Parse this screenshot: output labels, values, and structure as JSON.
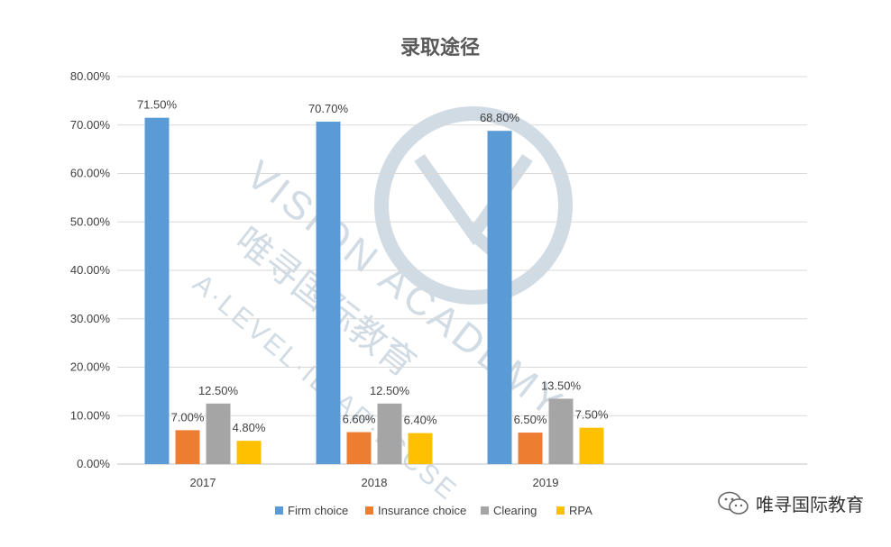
{
  "chart_data": {
    "type": "bar",
    "title": "录取途径",
    "categories": [
      "2017",
      "2018",
      "2019"
    ],
    "series": [
      {
        "name": "Firm choice",
        "color": "#5B9BD5",
        "values": [
          71.5,
          70.7,
          68.8
        ],
        "labels": [
          "71.50%",
          "70.70%",
          "68.80%"
        ]
      },
      {
        "name": "Insurance choice",
        "color": "#ED7D31",
        "values": [
          7.0,
          6.6,
          6.5
        ],
        "labels": [
          "7.00%",
          "6.60%",
          "6.50%"
        ]
      },
      {
        "name": "Clearing",
        "color": "#A5A5A5",
        "values": [
          12.5,
          12.5,
          13.5
        ],
        "labels": [
          "12.50%",
          "12.50%",
          "13.50%"
        ]
      },
      {
        "name": "RPA",
        "color": "#FFC000",
        "values": [
          4.8,
          6.4,
          7.5
        ],
        "labels": [
          "4.80%",
          "6.40%",
          "7.50%"
        ]
      }
    ],
    "ylim": [
      0,
      80
    ],
    "yticks": [
      "0.00%",
      "10.00%",
      "20.00%",
      "30.00%",
      "40.00%",
      "50.00%",
      "60.00%",
      "70.00%",
      "80.00%"
    ],
    "grid": true,
    "legend": "bottom"
  },
  "watermark": {
    "text_en": "VISION ACADEMY",
    "text_cn": "唯寻国际教育",
    "text_sub": "A·LEVEL·IB·AP·IGCSE"
  },
  "brand": {
    "icon": "wechat-icon",
    "text": "唯寻国际教育"
  }
}
